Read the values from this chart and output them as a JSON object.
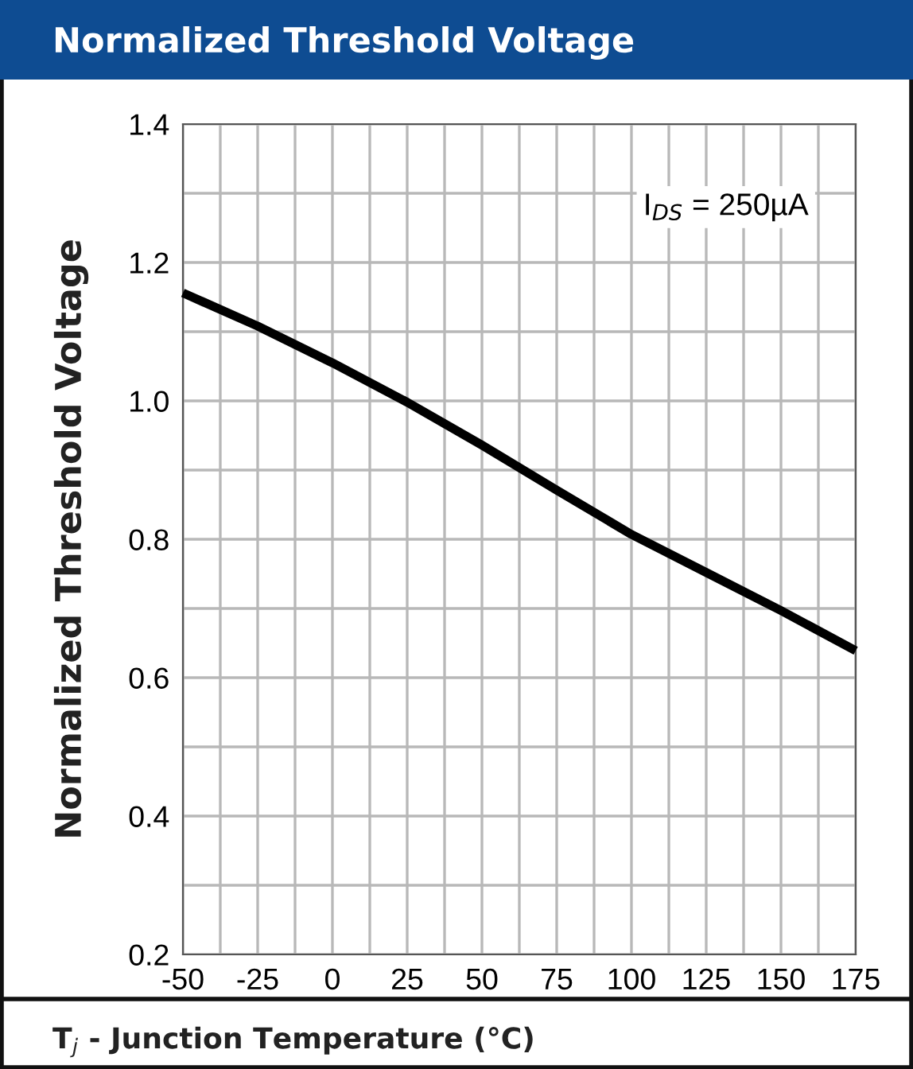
{
  "chart_data": {
    "type": "line",
    "title": "Normalized Threshold Voltage",
    "xlabel": "T$_{j}$ - Junction Temperature (°C)",
    "ylabel": "Normalized Threshold Voltage",
    "annotations": [
      "I$_{DS}$ = 250µA"
    ],
    "x": [
      -50,
      -25,
      0,
      25,
      50,
      75,
      100,
      125,
      150,
      175
    ],
    "series": [
      {
        "color": "#000000",
        "values": [
          1.156,
          1.108,
          1.055,
          0.998,
          0.936,
          0.871,
          0.807,
          0.752,
          0.697,
          0.639
        ]
      }
    ],
    "xlim": [
      -50,
      175
    ],
    "xticks": [
      -50,
      {
        "value": -37.5,
        "label": null
      },
      -25,
      {
        "value": -12.5,
        "label": null
      },
      0,
      {
        "value": 12.5,
        "label": null
      },
      25,
      {
        "value": 37.5,
        "label": null
      },
      50,
      {
        "value": 62.5,
        "label": null
      },
      75,
      {
        "value": 87.5,
        "label": null
      },
      100,
      {
        "value": 112.5,
        "label": null
      },
      125,
      {
        "value": 137.5,
        "label": null
      },
      150,
      {
        "value": 162.5,
        "label": null
      },
      175
    ],
    "ylim": [
      0.2,
      1.4
    ],
    "yticks": [
      {
        "value": 0.2,
        "label": "0.2"
      },
      {
        "value": 0.3,
        "label": null
      },
      {
        "value": 0.4,
        "label": "0.4"
      },
      {
        "value": 0.5,
        "label": null
      },
      {
        "value": 0.6,
        "label": "0.6"
      },
      {
        "value": 0.7,
        "label": null
      },
      {
        "value": 0.8,
        "label": "0.8"
      },
      {
        "value": 0.9,
        "label": null
      },
      {
        "value": 1.0,
        "label": "1.0"
      },
      {
        "value": 1.1,
        "label": null
      },
      {
        "value": 1.2,
        "label": "1.2"
      },
      {
        "value": 1.3,
        "label": null
      },
      {
        "value": 1.4,
        "label": "1.4"
      }
    ],
    "grid": true,
    "legend": false,
    "marker": "none",
    "line_style": "solid"
  }
}
